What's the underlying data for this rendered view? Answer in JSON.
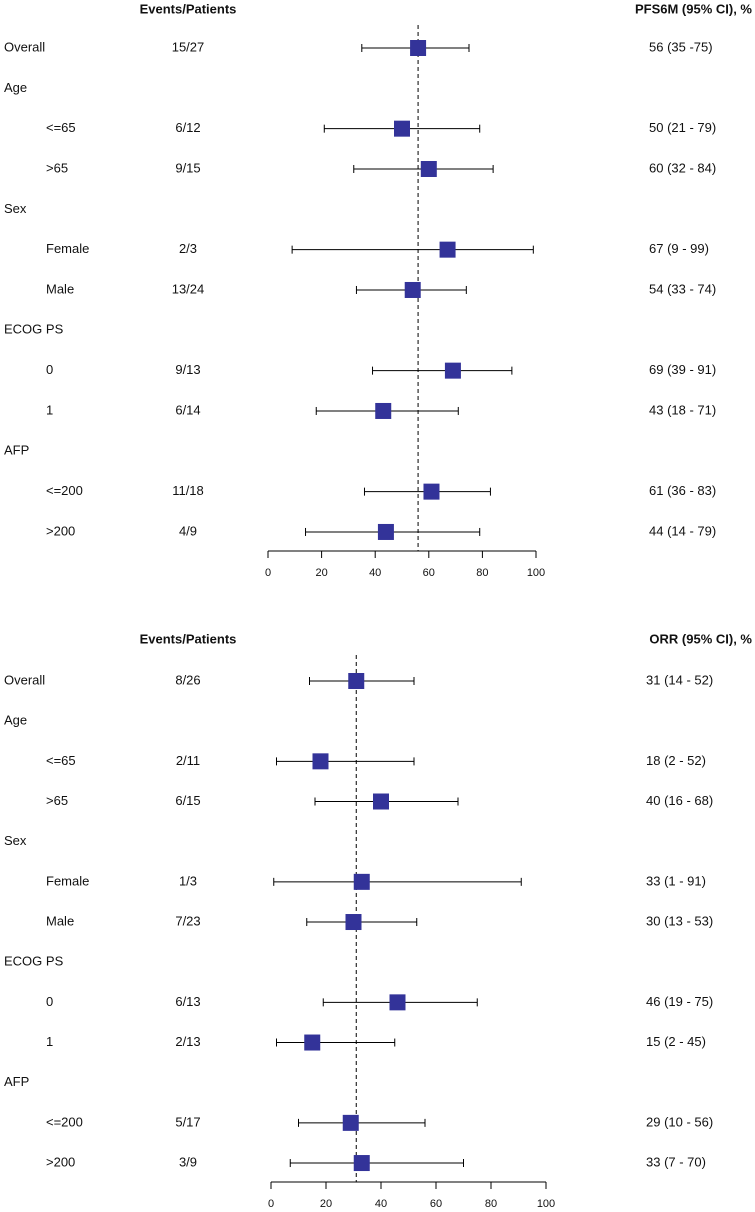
{
  "chart_data": [
    {
      "type": "forest",
      "events_header": "Events/Patients",
      "estimate_header": "PFS6M (95% CI), %",
      "categories": [
        "Overall",
        "Age",
        "<=65",
        ">65",
        "Sex",
        "Female",
        "Male",
        "ECOG PS",
        "0",
        "1",
        "AFP",
        "<=200",
        ">200"
      ],
      "events": [
        "15/27",
        null,
        "6/12",
        "9/15",
        null,
        "2/3",
        "13/24",
        null,
        "9/13",
        "6/14",
        null,
        "11/18",
        "4/9"
      ],
      "values": [
        56,
        null,
        50,
        60,
        null,
        67,
        54,
        null,
        69,
        43,
        null,
        61,
        44
      ],
      "lower": [
        35,
        null,
        21,
        32,
        null,
        9,
        33,
        null,
        39,
        18,
        null,
        36,
        14
      ],
      "upper": [
        75,
        null,
        79,
        84,
        null,
        99,
        74,
        null,
        91,
        71,
        null,
        83,
        79
      ],
      "value_labels": [
        "56 (35 -75)",
        null,
        "50 (21 - 79)",
        "60 (32 - 84)",
        null,
        "67 (9 - 99)",
        "54 (33 - 74)",
        null,
        "69 (39 - 91)",
        "43 (18 - 71)",
        null,
        "61 (36 - 83)",
        "44 (14 - 79)"
      ],
      "reference": 56,
      "xlim": [
        0,
        100
      ],
      "xticks": [
        0,
        20,
        40,
        60,
        80,
        100
      ],
      "color": "#333399"
    },
    {
      "type": "forest",
      "events_header": "Events/Patients",
      "estimate_header": "ORR (95% CI), %",
      "categories": [
        "Overall",
        "Age",
        "<=65",
        ">65",
        "Sex",
        "Female",
        "Male",
        "ECOG PS",
        "0",
        "1",
        "AFP",
        "<=200",
        ">200"
      ],
      "events": [
        "8/26",
        null,
        "2/11",
        "6/15",
        null,
        "1/3",
        "7/23",
        null,
        "6/13",
        "2/13",
        null,
        "5/17",
        "3/9"
      ],
      "values": [
        31,
        null,
        18,
        40,
        null,
        33,
        30,
        null,
        46,
        15,
        null,
        29,
        33
      ],
      "lower": [
        14,
        null,
        2,
        16,
        null,
        1,
        13,
        null,
        19,
        2,
        null,
        10,
        7
      ],
      "upper": [
        52,
        null,
        52,
        68,
        null,
        91,
        53,
        null,
        75,
        45,
        null,
        56,
        70
      ],
      "value_labels": [
        "31 (14 - 52)",
        null,
        "18 (2 - 52)",
        "40 (16 - 68)",
        null,
        "33 (1 - 91)",
        "30 (13 - 53)",
        null,
        "46 (19 - 75)",
        "15 (2 - 45)",
        null,
        "29 (10 - 56)",
        "33 (7 - 70)"
      ],
      "reference": 31,
      "xlim": [
        0,
        100
      ],
      "xticks": [
        0,
        20,
        40,
        60,
        80,
        100
      ],
      "color": "#333399"
    }
  ]
}
